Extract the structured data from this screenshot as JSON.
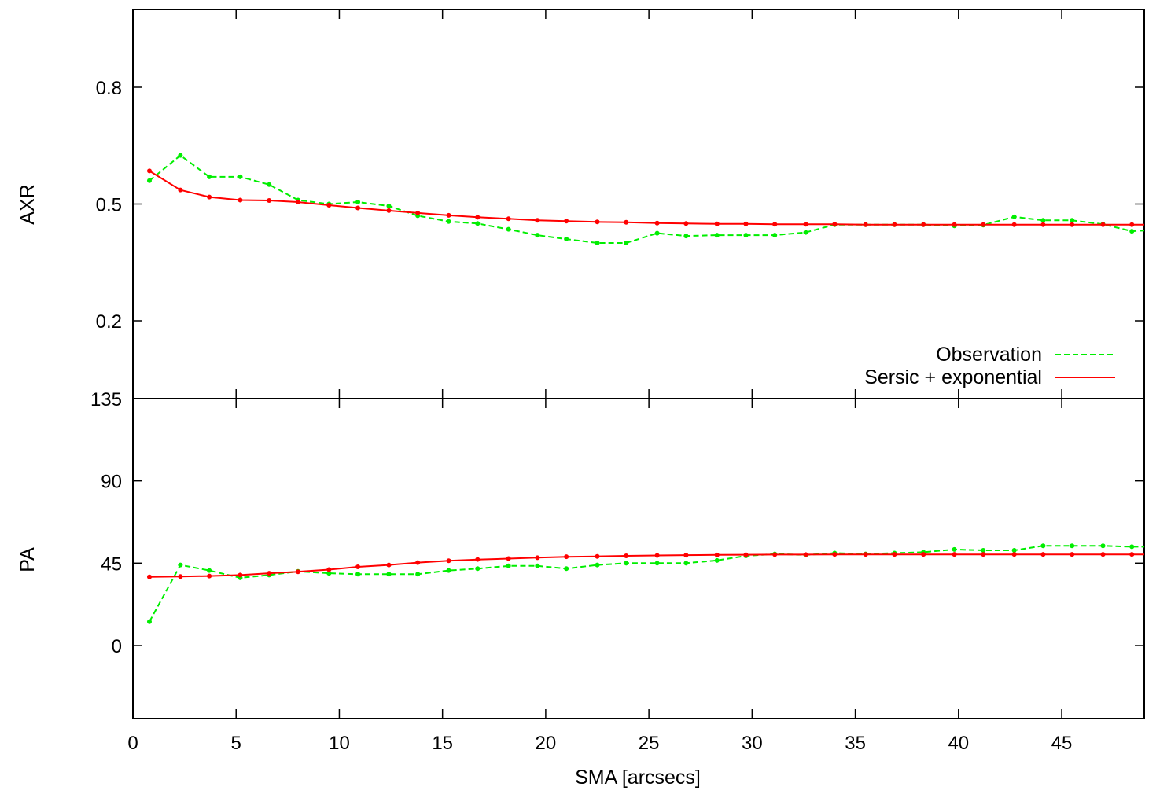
{
  "chart_data": [
    {
      "type": "line",
      "ylabel": "AXR",
      "xlim": [
        0,
        49
      ],
      "ylim": [
        0.0,
        1.0
      ],
      "yticks": [
        0.2,
        0.5,
        0.8
      ],
      "ytick_labels": [
        "0.2",
        "0.5",
        "0.8"
      ],
      "grid": false,
      "legend_position": "bottom-right",
      "series": [
        {
          "name": "Observation",
          "color": "#00ee00",
          "style": "dashed",
          "x": [
            0.8,
            2.3,
            3.7,
            5.2,
            6.6,
            8.0,
            9.5,
            10.9,
            12.4,
            13.8,
            15.3,
            16.7,
            18.2,
            19.6,
            21.0,
            22.5,
            23.9,
            25.4,
            26.8,
            28.3,
            29.7,
            31.1,
            32.6,
            34.0,
            35.5,
            36.9,
            38.3,
            39.8,
            41.2,
            42.7,
            44.1,
            45.5,
            47.0,
            48.4,
            49.0
          ],
          "y": [
            0.56,
            0.625,
            0.57,
            0.57,
            0.55,
            0.51,
            0.5,
            0.505,
            0.495,
            0.47,
            0.455,
            0.45,
            0.435,
            0.42,
            0.41,
            0.4,
            0.4,
            0.425,
            0.418,
            0.42,
            0.42,
            0.42,
            0.427,
            0.447,
            0.447,
            0.447,
            0.447,
            0.444,
            0.446,
            0.467,
            0.458,
            0.458,
            0.448,
            0.43,
            0.432
          ]
        },
        {
          "name": "Sersic + exponential",
          "color": "#ff0000",
          "style": "solid",
          "x": [
            0.8,
            2.3,
            3.7,
            5.2,
            6.6,
            8.0,
            9.5,
            10.9,
            12.4,
            13.8,
            15.3,
            16.7,
            18.2,
            19.6,
            21.0,
            22.5,
            23.9,
            25.4,
            26.8,
            28.3,
            29.7,
            31.1,
            32.6,
            34.0,
            35.5,
            36.9,
            38.3,
            39.8,
            41.2,
            42.7,
            44.1,
            45.5,
            47.0,
            48.4,
            49.0
          ],
          "y": [
            0.585,
            0.536,
            0.518,
            0.51,
            0.509,
            0.505,
            0.497,
            0.49,
            0.483,
            0.477,
            0.471,
            0.466,
            0.462,
            0.458,
            0.456,
            0.454,
            0.453,
            0.451,
            0.45,
            0.449,
            0.449,
            0.448,
            0.448,
            0.448,
            0.447,
            0.447,
            0.447,
            0.447,
            0.447,
            0.447,
            0.447,
            0.447,
            0.447,
            0.447,
            0.447
          ]
        }
      ]
    },
    {
      "type": "line",
      "xlabel": "SMA [arcsecs]",
      "ylabel": "PA",
      "xlim": [
        0,
        49
      ],
      "ylim": [
        -40,
        135
      ],
      "xticks": [
        0,
        5,
        10,
        15,
        20,
        25,
        30,
        35,
        40,
        45
      ],
      "xtick_labels": [
        "0",
        "5",
        "10",
        "15",
        "20",
        "25",
        "30",
        "35",
        "40",
        "45"
      ],
      "yticks": [
        0,
        45,
        90,
        135
      ],
      "ytick_labels": [
        "0",
        "45",
        "90",
        "135"
      ],
      "grid": false,
      "series": [
        {
          "name": "Observation",
          "color": "#00ee00",
          "style": "dashed",
          "x": [
            0.8,
            2.3,
            3.7,
            5.2,
            6.6,
            8.0,
            9.5,
            10.9,
            12.4,
            13.8,
            15.3,
            16.7,
            18.2,
            19.6,
            21.0,
            22.5,
            23.9,
            25.4,
            26.8,
            28.3,
            29.7,
            31.1,
            32.6,
            34.0,
            35.5,
            36.9,
            38.3,
            39.8,
            41.2,
            42.7,
            44.1,
            45.5,
            47.0,
            48.4,
            49.0
          ],
          "y": [
            13,
            44,
            41,
            37,
            38.5,
            40.5,
            39.5,
            39,
            39,
            39,
            41,
            42,
            43.5,
            43.5,
            42,
            44,
            45,
            45,
            45,
            46.5,
            49,
            50,
            49.5,
            50.5,
            50,
            50.5,
            51,
            52.5,
            52,
            52,
            54.5,
            54.5,
            54.5,
            54,
            54
          ]
        },
        {
          "name": "Sersic + exponential",
          "color": "#ff0000",
          "style": "solid",
          "x": [
            0.8,
            2.3,
            3.7,
            5.2,
            6.6,
            8.0,
            9.5,
            10.9,
            12.4,
            13.8,
            15.3,
            16.7,
            18.2,
            19.6,
            21.0,
            22.5,
            23.9,
            25.4,
            26.8,
            28.3,
            29.7,
            31.1,
            32.6,
            34.0,
            35.5,
            36.9,
            38.3,
            39.8,
            41.2,
            42.7,
            44.1,
            45.5,
            47.0,
            48.4,
            49.0
          ],
          "y": [
            37.5,
            37.7,
            38,
            38.5,
            39.5,
            40.3,
            41.5,
            43,
            44,
            45.3,
            46.3,
            47,
            47.5,
            48,
            48.5,
            48.7,
            49,
            49.2,
            49.4,
            49.5,
            49.6,
            49.7,
            49.7,
            49.8,
            49.8,
            49.8,
            49.8,
            49.8,
            49.8,
            49.8,
            49.8,
            49.8,
            49.8,
            49.8,
            49.8
          ]
        }
      ]
    }
  ]
}
